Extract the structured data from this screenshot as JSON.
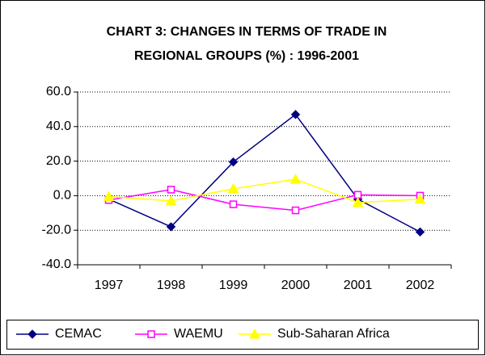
{
  "chart_data": {
    "type": "line",
    "title": [
      "CHART 3: CHANGES IN TERMS OF TRADE IN",
      "REGIONAL GROUPS (%) : 1996-2001"
    ],
    "categories": [
      "1997",
      "1998",
      "1999",
      "2000",
      "2001",
      "2002"
    ],
    "series": [
      {
        "name": "CEMAC",
        "color": "#000080",
        "marker": "diamond",
        "values": [
          -2,
          -18,
          19.5,
          47,
          -2,
          -21
        ]
      },
      {
        "name": "WAEMU",
        "color": "#ff00ff",
        "marker": "square",
        "values": [
          -2.5,
          3.5,
          -5,
          -8.5,
          0.5,
          0
        ]
      },
      {
        "name": "Sub-Saharan Africa",
        "color": "#ffff00",
        "marker": "triangle",
        "values": [
          -0.5,
          -3,
          4,
          9.5,
          -4,
          -2
        ]
      }
    ],
    "ylim": [
      -40,
      60
    ],
    "yticks": [
      {
        "value": -40,
        "label": "-40.0"
      },
      {
        "value": -20,
        "label": "-20.0"
      },
      {
        "value": 0,
        "label": "0.0"
      },
      {
        "value": 20,
        "label": "20.0"
      },
      {
        "value": 40,
        "label": "40.0"
      },
      {
        "value": 60,
        "label": "60.0"
      }
    ],
    "grid": true,
    "legend": "bottom"
  }
}
